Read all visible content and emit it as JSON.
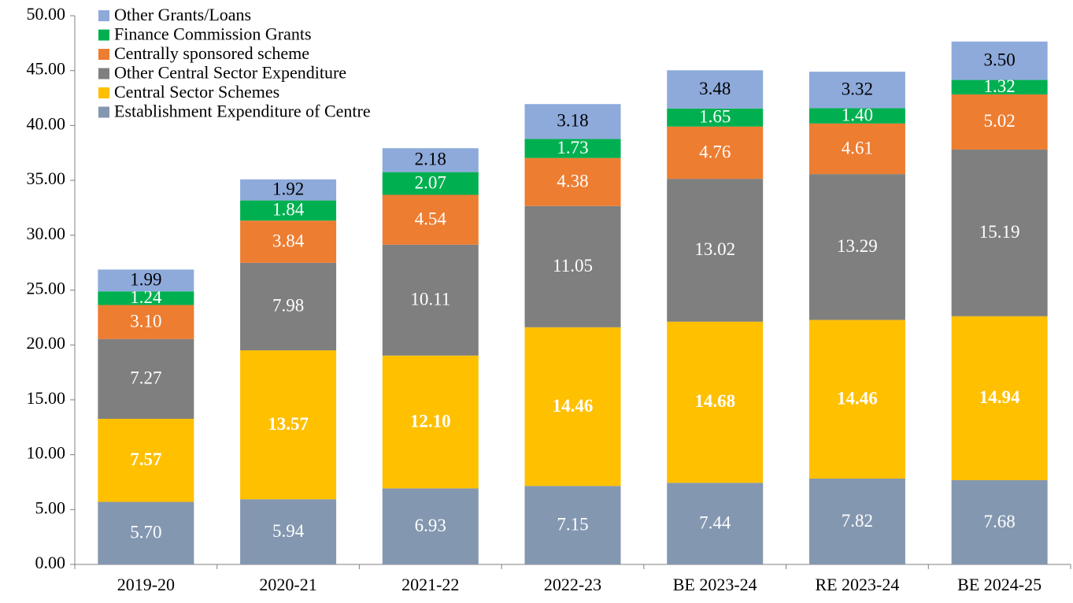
{
  "chart_data": {
    "type": "stacked_bar",
    "categories": [
      "2019-20",
      "2020-21",
      "2021-22",
      "2022-23",
      "BE 2023-24",
      "RE 2023-24",
      "BE 2024-25"
    ],
    "series": [
      {
        "name": "Establishment Expenditure of Centre",
        "color": "#8497b0",
        "values": [
          5.7,
          5.94,
          6.93,
          7.15,
          7.44,
          7.82,
          7.68
        ],
        "value_labels": [
          "5.70",
          "5.94",
          "6.93",
          "7.15",
          "7.44",
          "7.82",
          "7.68"
        ]
      },
      {
        "name": "Central Sector Schemes",
        "color": "#ffc000",
        "values": [
          7.57,
          13.57,
          12.1,
          14.46,
          14.68,
          14.46,
          14.94
        ],
        "value_labels": [
          "7.57",
          "13.57",
          "12.10",
          "14.46",
          "14.68",
          "14.46",
          "14.94"
        ]
      },
      {
        "name": "Other Central Sector Expenditure",
        "color": "#7f7f7f",
        "values": [
          7.27,
          7.98,
          10.11,
          11.05,
          13.02,
          13.29,
          15.19
        ],
        "value_labels": [
          "7.27",
          "7.98",
          "10.11",
          "11.05",
          "13.02",
          "13.29",
          "15.19"
        ]
      },
      {
        "name": "Centrally sponsored scheme",
        "color": "#ed7d31",
        "values": [
          3.1,
          3.84,
          4.54,
          4.38,
          4.76,
          4.61,
          5.02
        ],
        "value_labels": [
          "3.10",
          "3.84",
          "4.54",
          "4.38",
          "4.76",
          "4.61",
          "5.02"
        ]
      },
      {
        "name": "Finance Commission Grants",
        "color": "#00b050",
        "values": [
          1.24,
          1.84,
          2.07,
          1.73,
          1.65,
          1.4,
          1.32
        ],
        "value_labels": [
          "1.24",
          "1.84",
          "2.07",
          "1.73",
          "1.65",
          "1.40",
          "1.32"
        ]
      },
      {
        "name": "Other Grants/Loans",
        "color": "#8eaadb",
        "values": [
          1.99,
          1.92,
          2.18,
          3.18,
          3.48,
          3.32,
          3.5
        ],
        "value_labels": [
          "1.99",
          "1.92",
          "2.18",
          "3.18",
          "3.48",
          "3.32",
          "3.50"
        ]
      }
    ],
    "ylim": [
      0,
      50
    ],
    "yticks": [
      {
        "value": 0,
        "label": "0.00"
      },
      {
        "value": 5,
        "label": "5.00"
      },
      {
        "value": 10,
        "label": "10.00"
      },
      {
        "value": 15,
        "label": "15.00"
      },
      {
        "value": 20,
        "label": "20.00"
      },
      {
        "value": 25,
        "label": "25.00"
      },
      {
        "value": 30,
        "label": "30.00"
      },
      {
        "value": 35,
        "label": "35.00"
      },
      {
        "value": 40,
        "label": "40.00"
      },
      {
        "value": 45,
        "label": "45.00"
      },
      {
        "value": 50,
        "label": "50.00"
      }
    ],
    "legend": "upper left",
    "grid": false
  }
}
